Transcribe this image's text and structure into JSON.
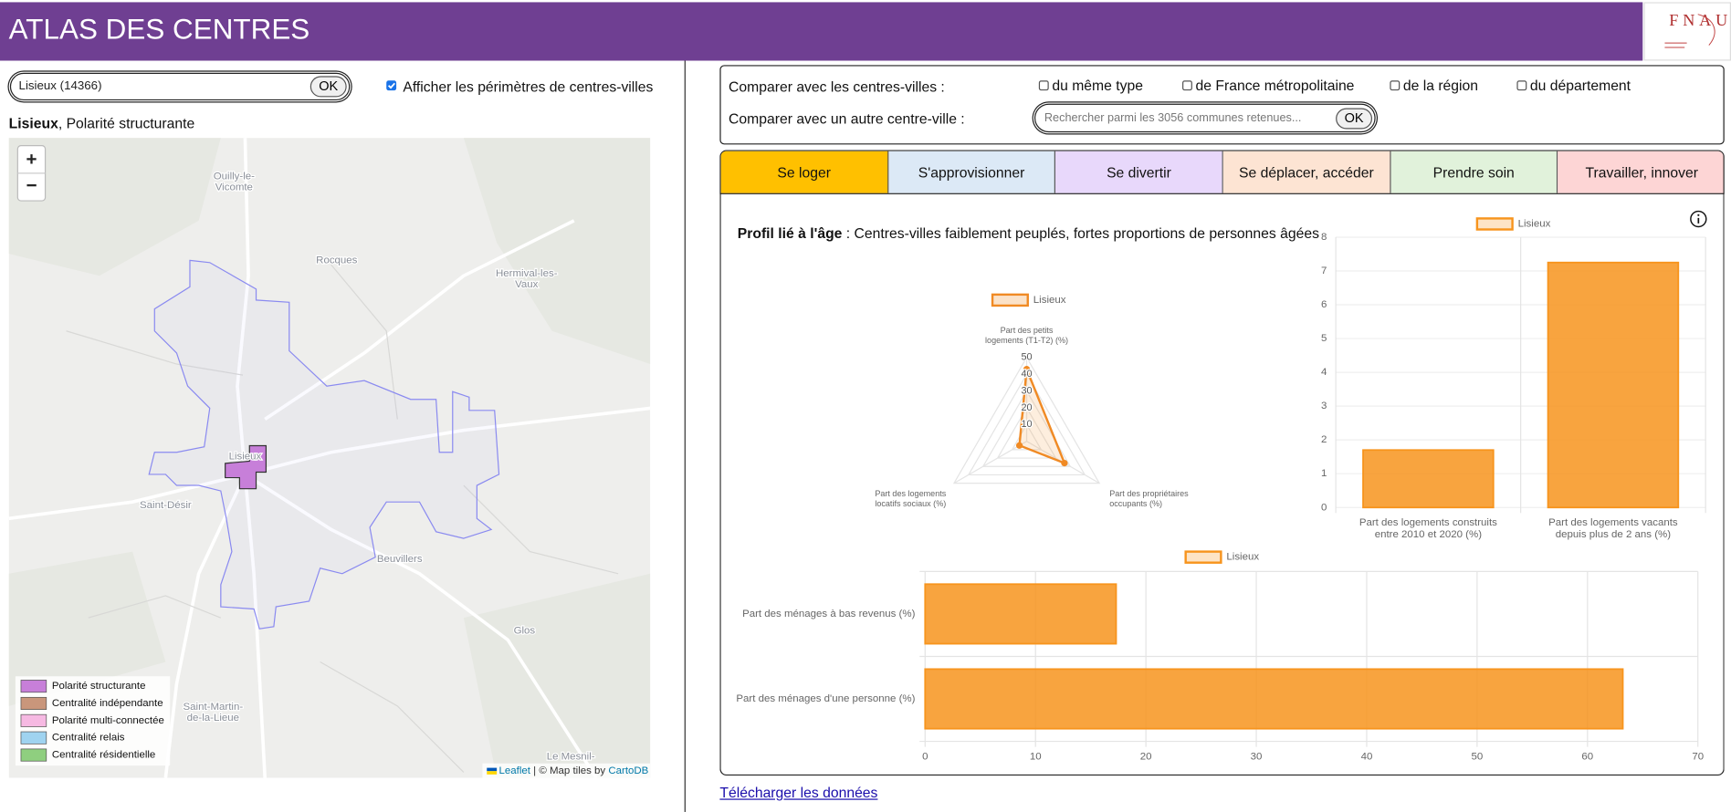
{
  "header": {
    "title": "ATLAS DES CENTRES",
    "logo": "FNAU"
  },
  "search": {
    "value": "Lisieux (14366)",
    "button": "OK"
  },
  "perimeter_toggle": {
    "label": "Afficher les périmètres de centres-villes",
    "checked": true
  },
  "selection": {
    "name": "Lisieux",
    "type": ", Polarité structurante"
  },
  "map": {
    "zoom_in": "+",
    "zoom_out": "−",
    "places": [
      [
        "Ouilly-le-",
        "Vicomte"
      ],
      [
        "Rocques"
      ],
      [
        "Hermival-les-",
        "Vaux"
      ],
      [
        "Lisieux"
      ],
      [
        "Saint-Désir"
      ],
      [
        "Beuvillers"
      ],
      [
        "Glos"
      ],
      [
        "Saint-Martin-",
        "de-la-Lieue"
      ],
      [
        "Le Mesnil-"
      ]
    ],
    "legend": [
      {
        "label": "Polarité structurante",
        "color": "#c77fd9"
      },
      {
        "label": "Centralité indépendante",
        "color": "#c9967b"
      },
      {
        "label": "Polarité multi-connectée",
        "color": "#f6b9e2"
      },
      {
        "label": "Centralité relais",
        "color": "#9fd3f0"
      },
      {
        "label": "Centralité résidentielle",
        "color": "#8fcf7f"
      }
    ],
    "attribution": {
      "link1": "Leaflet",
      "text": " | © Map tiles by ",
      "link2": "CartoDB"
    }
  },
  "compare": {
    "label": "Comparer avec les centres-villes :",
    "options": [
      "du même type",
      "de France métropolitaine",
      "de la région",
      "du département"
    ],
    "other_label": "Comparer avec un autre centre-ville :",
    "placeholder": "Rechercher parmi les 3056 communes retenues...",
    "button": "OK"
  },
  "tabs": {
    "active": 0,
    "items": [
      {
        "label": "Se loger",
        "color": "#ffc000"
      },
      {
        "label": "S'approvisionner",
        "color": "#dce9f6"
      },
      {
        "label": "Se divertir",
        "color": "#e8d8fb"
      },
      {
        "label": "Se déplacer, accéder",
        "color": "#fde4d3"
      },
      {
        "label": "Prendre soin",
        "color": "#e1f2db"
      },
      {
        "label": "Travailler, innover",
        "color": "#fdd5d5"
      }
    ]
  },
  "profile": {
    "label": "Profil lié à l'âge",
    "text": " : Centres-villes faiblement peuplés, fortes proportions de personnes âgées"
  },
  "chart_data": [
    {
      "type": "radar",
      "categories": [
        [
          "Part des petits",
          "logements (T1-T2) (%)"
        ],
        [
          "Part des propriétaires",
          "occupants (%)"
        ],
        [
          "Part des logements",
          "locatifs sociaux (%)"
        ]
      ],
      "series": [
        {
          "name": "Lisieux",
          "color": "#f08a24",
          "values": [
            43,
            26,
            5
          ]
        }
      ],
      "ylim": [
        0,
        50
      ],
      "yticks": [
        10,
        20,
        30,
        40,
        50
      ]
    },
    {
      "type": "bar",
      "categories": [
        [
          "Part des logements construits",
          "entre 2010 et 2020 (%)"
        ],
        [
          "Part des logements vacants",
          "depuis plus de 2 ans (%)"
        ]
      ],
      "series": [
        {
          "name": "Lisieux",
          "color": "#f7941d",
          "values": [
            1.7,
            7.25
          ]
        }
      ],
      "ylim": [
        0,
        8
      ],
      "yticks": [
        0,
        1,
        2,
        3,
        4,
        5,
        6,
        7,
        8
      ],
      "grid": true
    },
    {
      "type": "hbar",
      "categories": [
        "Part des ménages à bas revenus (%)",
        "Part des ménages d'une personne (%)"
      ],
      "series": [
        {
          "name": "Lisieux",
          "color": "#f7941d",
          "values": [
            17.3,
            63.2
          ]
        }
      ],
      "xlim": [
        0,
        70
      ],
      "xticks": [
        0,
        10,
        20,
        30,
        40,
        50,
        60,
        70
      ],
      "grid": true
    }
  ],
  "download": "Télécharger les données"
}
